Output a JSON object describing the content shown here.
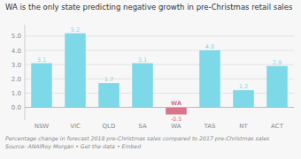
{
  "chart_data": {
    "type": "bar",
    "title": "WA is the only state predicting negative growth in pre-Christmas retail sales",
    "categories": [
      "NSW",
      "VIC",
      "QLD",
      "SA",
      "WA",
      "TAS",
      "NT",
      "ACT"
    ],
    "values": [
      3.1,
      5.2,
      1.7,
      3.1,
      -0.5,
      4.0,
      1.2,
      2.9
    ],
    "value_labels": [
      "3.1",
      "5.2",
      "1.7",
      "3.1",
      "-0.5",
      "4.0",
      "1.2",
      "2.9"
    ],
    "colors": [
      "#7dd8e8",
      "#7dd8e8",
      "#7dd8e8",
      "#7dd8e8",
      "#d9748a",
      "#7dd8e8",
      "#7dd8e8",
      "#7dd8e8"
    ],
    "ylim": [
      -0.9,
      5.8
    ],
    "yticks": [
      {
        "value": 0.0,
        "label": "0.0"
      },
      {
        "value": 1.0,
        "label": "1.0"
      },
      {
        "value": 2.0,
        "label": "2.0"
      },
      {
        "value": 3.0,
        "label": "3.0"
      },
      {
        "value": 4.0,
        "label": "4.0"
      },
      {
        "value": 5.0,
        "label": "5.0"
      }
    ],
    "grid": true,
    "data_labels": true,
    "annotations": [
      {
        "text": "WA",
        "category": "WA"
      }
    ],
    "footnotes": [
      "Percentage change in forecast 2018 pre-Christmas sales compared to 2017 pre-Christmas sales",
      "Source: ANAlRoy Morgan • Get the data • Embed"
    ]
  }
}
